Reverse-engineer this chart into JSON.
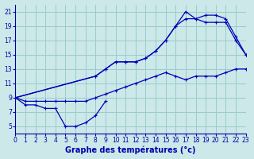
{
  "title": "Graphe des températures (°c)",
  "background_color": "#cce8e8",
  "grid_color": "#99cccc",
  "line_color": "#0000bb",
  "series": {
    "curve_low": {
      "x": [
        0,
        1,
        2,
        3,
        4,
        5,
        6,
        7,
        8,
        9
      ],
      "y": [
        9,
        8,
        8,
        7.5,
        7.5,
        5,
        5,
        5.5,
        6.5,
        8.5
      ]
    },
    "curve_high": {
      "x": [
        0,
        8,
        9,
        10,
        11,
        12,
        13,
        14,
        15,
        16,
        17,
        18,
        19,
        20,
        21,
        22,
        23
      ],
      "y": [
        9,
        12,
        13,
        14,
        14,
        14,
        14.5,
        15.5,
        17,
        19,
        21,
        20,
        20.5,
        20.5,
        20,
        17.5,
        15
      ]
    },
    "curve_mid": {
      "x": [
        0,
        8,
        9,
        10,
        11,
        12,
        13,
        14,
        15,
        16,
        17,
        18,
        19,
        20,
        21,
        22,
        23
      ],
      "y": [
        9,
        12,
        13,
        14,
        14,
        14,
        14.5,
        15.5,
        17,
        19,
        20,
        20,
        19.5,
        19.5,
        19.5,
        17,
        15
      ]
    },
    "curve_dew": {
      "x": [
        0,
        1,
        2,
        3,
        4,
        5,
        6,
        7,
        8,
        9,
        10,
        11,
        12,
        13,
        14,
        15,
        16,
        17,
        18,
        19,
        20,
        21,
        22,
        23
      ],
      "y": [
        9,
        8.5,
        8.5,
        8.5,
        8.5,
        8.5,
        8.5,
        8.5,
        9,
        9.5,
        10,
        10.5,
        11,
        11.5,
        12,
        12.5,
        12,
        11.5,
        12,
        12,
        12,
        12.5,
        13,
        13
      ]
    }
  },
  "xlim": [
    0,
    23
  ],
  "ylim": [
    4,
    22
  ],
  "yticks": [
    5,
    7,
    9,
    11,
    13,
    15,
    17,
    19,
    21
  ],
  "xticks": [
    0,
    1,
    2,
    3,
    4,
    5,
    6,
    7,
    8,
    9,
    10,
    11,
    12,
    13,
    14,
    15,
    16,
    17,
    18,
    19,
    20,
    21,
    22,
    23
  ],
  "xlabel_fontsize": 7.0,
  "tick_fontsize": 5.5
}
